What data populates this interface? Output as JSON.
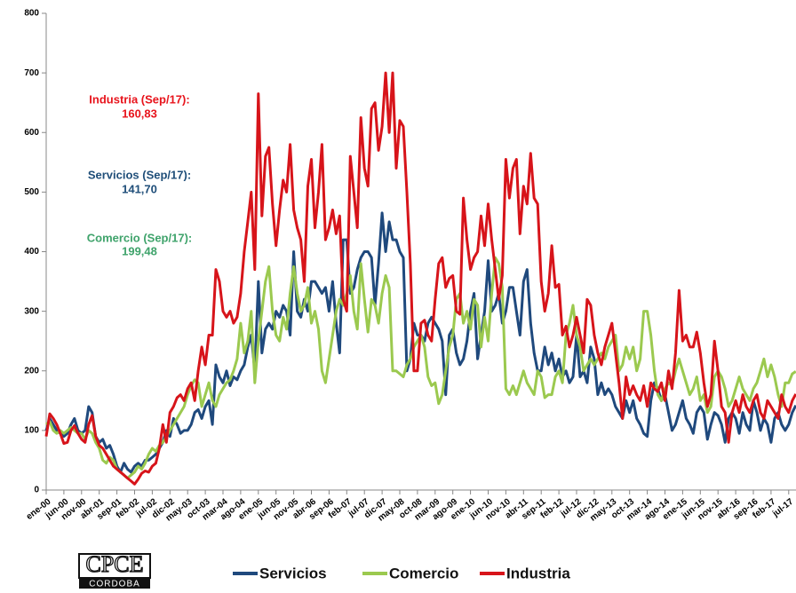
{
  "chart_data": {
    "type": "line",
    "categories": [
      "ene-00",
      null,
      null,
      null,
      null,
      "jun-00",
      null,
      null,
      null,
      null,
      "nov-00",
      null,
      null,
      null,
      null,
      "abr-01",
      null,
      null,
      null,
      null,
      "sep-01",
      null,
      null,
      null,
      null,
      "feb-02",
      null,
      null,
      null,
      null,
      "jul-02",
      null,
      null,
      null,
      null,
      "dic-02",
      null,
      null,
      null,
      null,
      "may-03",
      null,
      null,
      null,
      null,
      "oct-03",
      null,
      null,
      null,
      null,
      "mar-04",
      null,
      null,
      null,
      null,
      "ago-04",
      null,
      null,
      null,
      null,
      "ene-05",
      null,
      null,
      null,
      null,
      "jun-05",
      null,
      null,
      null,
      null,
      "nov-05",
      null,
      null,
      null,
      null,
      "abr-06",
      null,
      null,
      null,
      null,
      "sep-06",
      null,
      null,
      null,
      null,
      "feb-07",
      null,
      null,
      null,
      null,
      "jul-07",
      null,
      null,
      null,
      null,
      "dic-07",
      null,
      null,
      null,
      null,
      "may-08",
      null,
      null,
      null,
      null,
      "oct-08",
      null,
      null,
      null,
      null,
      "mar-09",
      null,
      null,
      null,
      null,
      "ago-09",
      null,
      null,
      null,
      null,
      "ene-10",
      null,
      null,
      null,
      null,
      "jun-10",
      null,
      null,
      null,
      null,
      "nov-10",
      null,
      null,
      null,
      null,
      "abr-11",
      null,
      null,
      null,
      null,
      "sep-11",
      null,
      null,
      null,
      null,
      "feb-12",
      null,
      null,
      null,
      null,
      "jul-12",
      null,
      null,
      null,
      null,
      "dic-12",
      null,
      null,
      null,
      null,
      "may-13",
      null,
      null,
      null,
      null,
      "oct-13",
      null,
      null,
      null,
      null,
      "mar-14",
      null,
      null,
      null,
      null,
      "ago-14",
      null,
      null,
      null,
      null,
      "ene-15",
      null,
      null,
      null,
      null,
      "jun-15",
      null,
      null,
      null,
      null,
      "nov-15",
      null,
      null,
      null,
      null,
      "abr-16",
      null,
      null,
      null,
      null,
      "sep-16",
      null,
      null,
      null,
      null,
      "feb-17",
      null,
      null,
      null,
      null,
      "jul-17",
      null,
      null
    ],
    "series": [
      {
        "name": "Servicios",
        "color": "#1f497d",
        "values": [
          100,
          120,
          110,
          100,
          95,
          90,
          95,
          110,
          120,
          100,
          95,
          100,
          140,
          130,
          90,
          80,
          85,
          70,
          75,
          60,
          40,
          30,
          45,
          35,
          30,
          40,
          45,
          40,
          50,
          50,
          55,
          60,
          70,
          80,
          100,
          90,
          120,
          110,
          95,
          100,
          100,
          110,
          130,
          135,
          120,
          140,
          150,
          110,
          210,
          190,
          180,
          200,
          175,
          190,
          185,
          200,
          210,
          240,
          260,
          200,
          350,
          230,
          270,
          280,
          270,
          300,
          290,
          310,
          300,
          260,
          400,
          300,
          290,
          320,
          300,
          350,
          350,
          340,
          330,
          340,
          300,
          350,
          280,
          230,
          420,
          420,
          330,
          340,
          370,
          390,
          400,
          400,
          390,
          310,
          380,
          465,
          400,
          450,
          420,
          420,
          400,
          390,
          200,
          220,
          280,
          260,
          260,
          250,
          280,
          290,
          280,
          270,
          250,
          160,
          260,
          270,
          230,
          210,
          220,
          250,
          300,
          330,
          220,
          260,
          300,
          385,
          300,
          310,
          330,
          280,
          300,
          340,
          340,
          300,
          260,
          350,
          370,
          280,
          230,
          200,
          200,
          240,
          210,
          230,
          200,
          220,
          190,
          200,
          180,
          190,
          260,
          190,
          200,
          180,
          240,
          220,
          160,
          180,
          160,
          170,
          160,
          140,
          130,
          120,
          150,
          130,
          150,
          120,
          110,
          95,
          90,
          150,
          180,
          170,
          150,
          160,
          130,
          100,
          110,
          130,
          150,
          120,
          110,
          95,
          130,
          140,
          130,
          85,
          110,
          130,
          125,
          110,
          80,
          120,
          130,
          120,
          95,
          130,
          110,
          100,
          150,
          130,
          100,
          120,
          110,
          80,
          120,
          130,
          110,
          100,
          110,
          130,
          142
        ]
      },
      {
        "name": "Comercio",
        "color": "#9bc94f",
        "values": [
          110,
          115,
          100,
          95,
          100,
          95,
          100,
          105,
          100,
          95,
          95,
          85,
          100,
          95,
          80,
          70,
          50,
          45,
          55,
          50,
          35,
          30,
          25,
          20,
          25,
          30,
          40,
          35,
          45,
          60,
          70,
          65,
          75,
          80,
          90,
          100,
          110,
          120,
          130,
          140,
          160,
          175,
          185,
          180,
          140,
          160,
          180,
          150,
          140,
          160,
          170,
          180,
          185,
          200,
          220,
          280,
          230,
          250,
          300,
          180,
          250,
          300,
          350,
          375,
          300,
          260,
          250,
          290,
          270,
          330,
          375,
          330,
          300,
          310,
          340,
          280,
          300,
          270,
          200,
          180,
          220,
          260,
          300,
          320,
          310,
          330,
          360,
          300,
          270,
          380,
          320,
          265,
          320,
          310,
          280,
          330,
          360,
          340,
          200,
          200,
          195,
          190,
          210,
          220,
          240,
          250,
          260,
          240,
          190,
          175,
          180,
          145,
          160,
          200,
          240,
          260,
          320,
          330,
          280,
          300,
          270,
          320,
          310,
          240,
          290,
          250,
          330,
          390,
          380,
          340,
          170,
          160,
          175,
          160,
          180,
          200,
          180,
          170,
          160,
          200,
          190,
          155,
          160,
          160,
          190,
          200,
          180,
          260,
          280,
          310,
          260,
          240,
          200,
          210,
          220,
          210,
          220,
          230,
          220,
          240,
          250,
          260,
          200,
          210,
          240,
          220,
          240,
          200,
          220,
          300,
          300,
          260,
          200,
          160,
          150,
          170,
          180,
          175,
          200,
          220,
          200,
          180,
          160,
          170,
          190,
          150,
          160,
          130,
          140,
          190,
          200,
          190,
          170,
          140,
          150,
          170,
          190,
          170,
          160,
          150,
          170,
          180,
          200,
          220,
          190,
          210,
          190,
          160,
          140,
          180,
          180,
          195,
          199
        ]
      },
      {
        "name": "Industria",
        "color": "#d7141a",
        "values": [
          90,
          128,
          120,
          110,
          95,
          78,
          80,
          100,
          108,
          95,
          85,
          80,
          110,
          125,
          90,
          75,
          70,
          60,
          50,
          40,
          35,
          30,
          25,
          20,
          15,
          10,
          18,
          28,
          32,
          30,
          40,
          45,
          70,
          110,
          80,
          130,
          140,
          155,
          160,
          150,
          170,
          180,
          150,
          200,
          240,
          210,
          260,
          260,
          370,
          350,
          300,
          290,
          300,
          280,
          290,
          330,
          400,
          450,
          500,
          370,
          665,
          460,
          560,
          575,
          480,
          410,
          470,
          520,
          500,
          580,
          470,
          440,
          420,
          350,
          510,
          555,
          440,
          500,
          580,
          420,
          440,
          470,
          430,
          460,
          320,
          300,
          560,
          500,
          440,
          625,
          540,
          510,
          640,
          650,
          570,
          610,
          700,
          600,
          700,
          540,
          620,
          610,
          500,
          380,
          200,
          200,
          280,
          285,
          260,
          250,
          320,
          380,
          390,
          340,
          355,
          360,
          300,
          295,
          490,
          420,
          370,
          390,
          400,
          460,
          410,
          480,
          420,
          370,
          320,
          360,
          555,
          490,
          540,
          555,
          430,
          510,
          480,
          565,
          490,
          480,
          350,
          300,
          330,
          410,
          340,
          345,
          260,
          275,
          240,
          260,
          290,
          260,
          230,
          320,
          310,
          260,
          230,
          210,
          240,
          260,
          280,
          230,
          180,
          120,
          190,
          160,
          175,
          160,
          150,
          175,
          140,
          180,
          170,
          165,
          180,
          150,
          200,
          170,
          230,
          335,
          250,
          260,
          240,
          240,
          265,
          230,
          180,
          140,
          160,
          250,
          200,
          140,
          130,
          80,
          130,
          150,
          130,
          160,
          140,
          130,
          150,
          160,
          130,
          120,
          150,
          140,
          130,
          120,
          160,
          140,
          130,
          150,
          161
        ]
      }
    ],
    "ylim": [
      0,
      800
    ],
    "yticks": [
      0,
      100,
      200,
      300,
      400,
      500,
      600,
      700,
      800
    ],
    "annotations": [
      {
        "label": "Industria (Sep/17):",
        "value": "160,83",
        "color": "#e8141c"
      },
      {
        "label": "Servicios (Sep/17):",
        "value": "141,70",
        "color": "#1f4e79"
      },
      {
        "label": "Comercio (Sep/17):",
        "value": "199,48",
        "color": "#3fa36b"
      }
    ],
    "logo": {
      "title": "CPCE",
      "subtitle": "CORDOBA"
    }
  }
}
